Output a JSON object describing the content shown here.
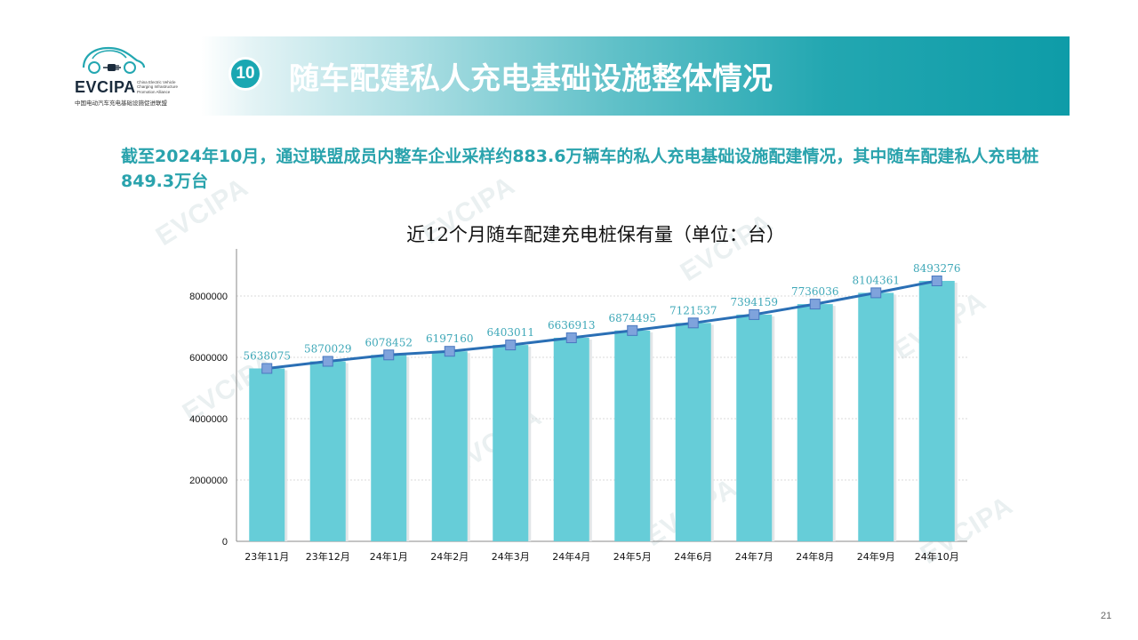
{
  "logo": {
    "name": "EVCIPA",
    "sub_en": "China Electric Vehicle Charging Infrastructure Promotion Alliance",
    "sub_cn": "中国电动汽车充电基础设施促进联盟"
  },
  "banner": {
    "badge": "10",
    "title": "随车配建私人充电基础设施整体情况"
  },
  "summary": "截至2024年10月，通过联盟成员内整车企业采样约883.6万辆车的私人充电基础设施配建情况，其中随车配建私人充电桩849.3万台",
  "watermark": "EVCIPA",
  "page_number": "21",
  "colors": {
    "accent": "#2aa3ad",
    "bar": "#66cdd8",
    "line": "#2a6fb5",
    "marker": "#7fa3dc"
  },
  "chart_data": {
    "type": "bar",
    "title": "近12个月随车配建充电桩保有量（单位：台）",
    "categories": [
      "23年11月",
      "23年12月",
      "24年1月",
      "24年2月",
      "24年3月",
      "24年4月",
      "24年5月",
      "24年6月",
      "24年7月",
      "24年8月",
      "24年9月",
      "24年10月"
    ],
    "values": [
      5638075,
      5870029,
      6078452,
      6197160,
      6403011,
      6636913,
      6874495,
      7121537,
      7394159,
      7736036,
      8104361,
      8493276
    ],
    "data_labels": [
      "5638075",
      "5870029",
      "6078452",
      "6197160",
      "6403011",
      "6636913",
      "6874495",
      "7121537",
      "7394159",
      "7736036",
      "8104361",
      "8493276"
    ],
    "line_overlay": true,
    "yticks": [
      0,
      2000000,
      4000000,
      6000000,
      8000000
    ],
    "ytick_labels": [
      "0",
      "2000000",
      "4000000",
      "6000000",
      "8000000"
    ],
    "ylim": [
      0,
      8000000
    ],
    "grid": true,
    "xlabel": "",
    "ylabel": ""
  }
}
